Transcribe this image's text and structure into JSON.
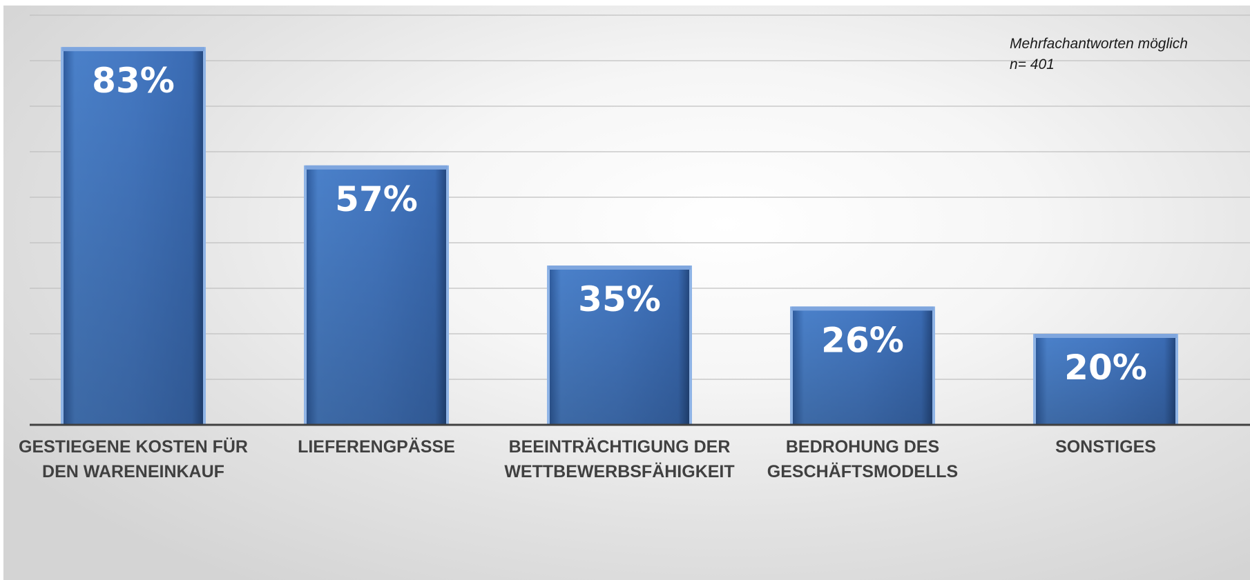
{
  "chart_data": {
    "type": "bar",
    "categories": [
      "GESTIEGENE KOSTEN FÜR\nDEN WARENEINKAUF",
      "LIEFERENGPÄSSE",
      "BEEINTRÄCHTIGUNG DER\nWETTBEWERBSFÄHIGKEIT",
      "BEDROHUNG DES\nGESCHÄFTSMODELLS",
      "SONSTIGES"
    ],
    "values": [
      83,
      57,
      35,
      26,
      20
    ],
    "value_labels": [
      "83%",
      "57%",
      "35%",
      "26%",
      "20%"
    ],
    "ylim": [
      0,
      90
    ],
    "grid": true,
    "annotations": [
      "Mehrfachantworten möglich",
      "n= 401"
    ],
    "colors": {
      "bar_light": "#5a8fd6",
      "bar_mid": "#3f73bd",
      "bar_dark": "#2a538f",
      "bar_edge": "#8fb4e6",
      "axis": "#404040",
      "grid": "#c0c0c0",
      "category_text": "#404040",
      "value_text": "#ffffff"
    }
  }
}
